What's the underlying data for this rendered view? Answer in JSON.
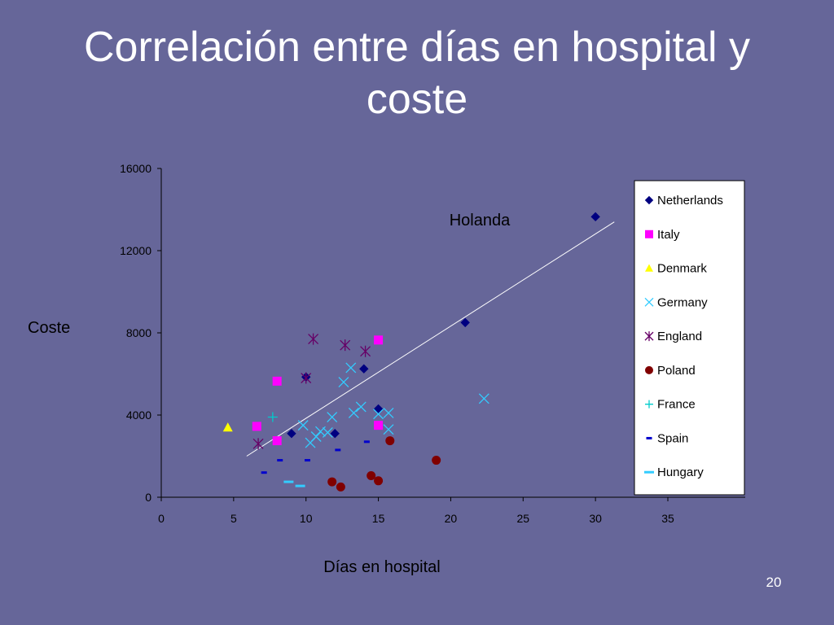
{
  "slide": {
    "title_line1": "Correlación entre días en hospital y",
    "title_line2": "coste",
    "page_number": "20"
  },
  "chart_data": {
    "type": "scatter",
    "xlabel": "Días en hospital",
    "ylabel": "Coste",
    "xlim": [
      0,
      35
    ],
    "ylim": [
      0,
      16000
    ],
    "x_ticks": [
      0,
      5,
      10,
      15,
      20,
      25,
      30,
      35
    ],
    "y_ticks": [
      0,
      4000,
      8000,
      12000,
      16000
    ],
    "grid": false,
    "legend_position": "right",
    "annotations": [
      {
        "text": "Holanda",
        "x": 22,
        "y": 13500
      }
    ],
    "trendline": {
      "x": [
        5.9,
        31.3
      ],
      "y": [
        2000,
        13400
      ],
      "color": "#ffffff"
    },
    "series": [
      {
        "name": "Netherlands",
        "marker": "diamond",
        "color": "#000080",
        "points": [
          [
            9,
            3100
          ],
          [
            10,
            5850
          ],
          [
            12,
            3100
          ],
          [
            14,
            6250
          ],
          [
            15,
            4300
          ],
          [
            21,
            8500
          ],
          [
            30,
            13650
          ]
        ]
      },
      {
        "name": "Italy",
        "marker": "square",
        "color": "#ff00ff",
        "points": [
          [
            6.6,
            3450
          ],
          [
            8,
            5650
          ],
          [
            8,
            2750
          ],
          [
            15,
            7650
          ],
          [
            15,
            3500
          ]
        ]
      },
      {
        "name": "Denmark",
        "marker": "triangle",
        "color": "#ffff00",
        "points": [
          [
            4.6,
            3400
          ]
        ]
      },
      {
        "name": "Germany",
        "marker": "x",
        "color": "#33ccff",
        "points": [
          [
            9.8,
            3500
          ],
          [
            10.3,
            2650
          ],
          [
            10.7,
            2950
          ],
          [
            11,
            3200
          ],
          [
            11.5,
            3150
          ],
          [
            11.8,
            3900
          ],
          [
            12.6,
            5600
          ],
          [
            13.1,
            6300
          ],
          [
            13.3,
            4100
          ],
          [
            13.8,
            4400
          ],
          [
            15,
            4050
          ],
          [
            15.7,
            4100
          ],
          [
            15.7,
            3300
          ],
          [
            22.3,
            4800
          ]
        ]
      },
      {
        "name": "England",
        "marker": "asterisk",
        "color": "#660066",
        "points": [
          [
            6.7,
            2600
          ],
          [
            10,
            5800
          ],
          [
            10.5,
            7700
          ],
          [
            12.7,
            7400
          ],
          [
            14.1,
            7100
          ]
        ]
      },
      {
        "name": "Poland",
        "marker": "circle",
        "color": "#800000",
        "points": [
          [
            11.8,
            750
          ],
          [
            12.4,
            500
          ],
          [
            14.5,
            1050
          ],
          [
            15,
            800
          ],
          [
            15.8,
            2750
          ],
          [
            19,
            1800
          ]
        ]
      },
      {
        "name": "France",
        "marker": "plus",
        "color": "#00cccc",
        "points": [
          [
            7.7,
            3900
          ]
        ]
      },
      {
        "name": "Spain",
        "marker": "short-dash",
        "color": "#0000cc",
        "points": [
          [
            7.1,
            1200
          ],
          [
            8.2,
            1800
          ],
          [
            10.1,
            1800
          ],
          [
            12.2,
            2300
          ],
          [
            14.2,
            2700
          ]
        ]
      },
      {
        "name": "Hungary",
        "marker": "long-dash",
        "color": "#33ccff",
        "points": [
          [
            8.8,
            750
          ],
          [
            9.6,
            550
          ]
        ]
      }
    ]
  }
}
